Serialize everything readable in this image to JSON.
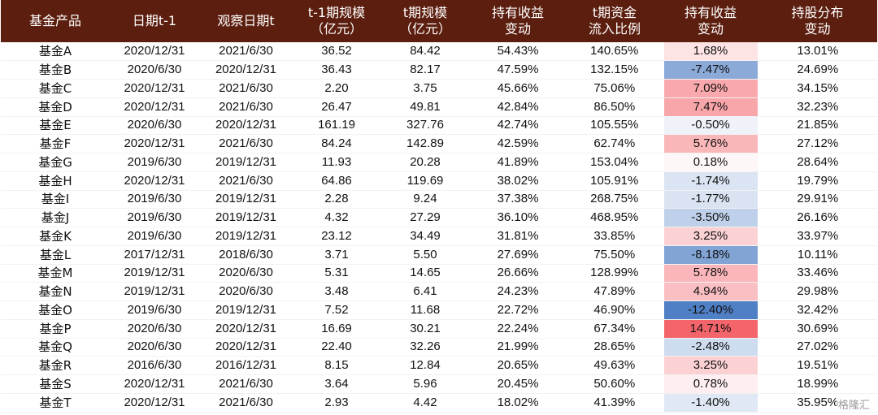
{
  "table": {
    "headers": [
      "基金产品",
      "日期t-1",
      "观察日期t",
      "t-1期规模\n（亿元）",
      "t期规模\n（亿元）",
      "持有收益\n变动",
      "t期资金\n流入比例",
      "持有收益\n变动",
      "持股分布\n变动"
    ],
    "rows": [
      [
        "基金A",
        "2020/12/31",
        "2021/6/30",
        "36.52",
        "84.42",
        "54.43%",
        "140.65%",
        "1.68%",
        "13.01%"
      ],
      [
        "基金B",
        "2020/6/30",
        "2020/12/31",
        "36.43",
        "82.17",
        "47.59%",
        "132.15%",
        "-7.47%",
        "24.69%"
      ],
      [
        "基金C",
        "2020/12/31",
        "2021/6/30",
        "2.20",
        "3.75",
        "45.66%",
        "75.06%",
        "7.09%",
        "34.15%"
      ],
      [
        "基金D",
        "2020/12/31",
        "2021/6/30",
        "26.47",
        "49.81",
        "42.84%",
        "86.50%",
        "7.47%",
        "32.23%"
      ],
      [
        "基金E",
        "2020/6/30",
        "2020/12/31",
        "161.19",
        "327.76",
        "42.74%",
        "105.55%",
        "-0.50%",
        "21.85%"
      ],
      [
        "基金F",
        "2020/12/31",
        "2021/6/30",
        "84.24",
        "142.89",
        "42.59%",
        "62.74%",
        "5.76%",
        "27.12%"
      ],
      [
        "基金G",
        "2019/6/30",
        "2019/12/31",
        "11.93",
        "20.28",
        "41.89%",
        "153.04%",
        "0.18%",
        "28.64%"
      ],
      [
        "基金H",
        "2020/12/31",
        "2021/6/30",
        "64.86",
        "119.69",
        "38.02%",
        "105.91%",
        "-1.74%",
        "19.79%"
      ],
      [
        "基金I",
        "2019/6/30",
        "2019/12/31",
        "2.28",
        "9.24",
        "37.38%",
        "268.75%",
        "-1.77%",
        "29.91%"
      ],
      [
        "基金J",
        "2019/6/30",
        "2019/12/31",
        "4.32",
        "27.29",
        "36.10%",
        "468.95%",
        "-3.50%",
        "26.16%"
      ],
      [
        "基金K",
        "2019/6/30",
        "2019/12/31",
        "23.12",
        "34.49",
        "31.81%",
        "33.85%",
        "3.25%",
        "33.97%"
      ],
      [
        "基金L",
        "2017/12/31",
        "2018/6/30",
        "3.71",
        "5.50",
        "27.69%",
        "75.50%",
        "-8.18%",
        "10.11%"
      ],
      [
        "基金M",
        "2019/12/31",
        "2020/6/30",
        "5.31",
        "14.65",
        "26.66%",
        "128.99%",
        "5.78%",
        "33.46%"
      ],
      [
        "基金N",
        "2019/12/31",
        "2020/6/30",
        "3.48",
        "6.41",
        "24.23%",
        "47.89%",
        "4.94%",
        "29.98%"
      ],
      [
        "基金O",
        "2019/6/30",
        "2019/12/31",
        "7.52",
        "11.68",
        "22.72%",
        "46.90%",
        "-12.40%",
        "32.42%"
      ],
      [
        "基金P",
        "2020/6/30",
        "2020/12/31",
        "16.69",
        "30.21",
        "22.24%",
        "67.34%",
        "14.71%",
        "30.69%"
      ],
      [
        "基金Q",
        "2020/6/30",
        "2020/12/31",
        "22.40",
        "32.26",
        "21.99%",
        "28.65%",
        "-2.48%",
        "27.02%"
      ],
      [
        "基金R",
        "2016/6/30",
        "2016/12/31",
        "8.15",
        "12.84",
        "20.65%",
        "49.63%",
        "3.25%",
        "19.51%"
      ],
      [
        "基金S",
        "2020/12/31",
        "2021/6/30",
        "3.64",
        "5.96",
        "20.45%",
        "50.60%",
        "0.78%",
        "18.99%"
      ],
      [
        "基金T",
        "2020/12/31",
        "2021/6/30",
        "2.93",
        "4.42",
        "18.02%",
        "41.39%",
        "-1.40%",
        "35.95%"
      ]
    ],
    "heat_column_index": 7,
    "heat_colors": {
      "positive_max": "#f4646b",
      "negative_max": "#4f7fc4",
      "neutral": "#ffffff"
    }
  },
  "watermark": "格隆汇"
}
